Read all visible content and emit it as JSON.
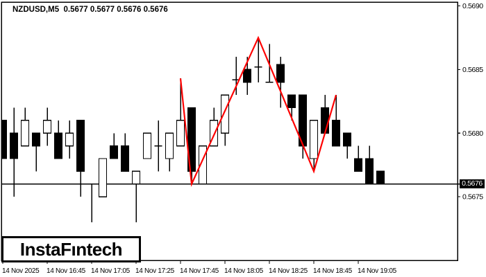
{
  "window": {
    "bg": "#ffffff",
    "fg": "#000000"
  },
  "header": {
    "title": "NZDUSD,M5  0.5677 0.5677 0.5676 0.5676"
  },
  "logo": {
    "text": "InstaFıntech"
  },
  "chart_data": {
    "type": "candlestick",
    "symbol": "NZDUSD",
    "timeframe": "M5",
    "header_ohlc": [
      "0.5677",
      "0.5677",
      "0.5676",
      "0.5676"
    ],
    "grid": false,
    "up_color": "#ffffff",
    "down_color": "#000000",
    "outline_color": "#000000",
    "y_axis": {
      "side": "right",
      "range": [
        0.567,
        0.56903
      ],
      "ticks": [
        {
          "label": "0.5690",
          "price": 0.569
        },
        {
          "label": "0.5685",
          "price": 0.5685
        },
        {
          "label": "0.5680",
          "price": 0.568
        },
        {
          "label": "0.5675",
          "price": 0.5675
        }
      ]
    },
    "x_axis": {
      "ticks": [
        {
          "label": "14 Nov 2025",
          "candle": 0
        },
        {
          "label": "14 Nov 16:45",
          "candle": 4
        },
        {
          "label": "14 Nov 17:05",
          "candle": 8
        },
        {
          "label": "14 Nov 17:25",
          "candle": 12
        },
        {
          "label": "14 Nov 17:45",
          "candle": 16
        },
        {
          "label": "14 Nov 18:05",
          "candle": 20
        },
        {
          "label": "14 Nov 18:25",
          "candle": 24
        },
        {
          "label": "14 Nov 18:45",
          "candle": 28
        },
        {
          "label": "14 Nov 19:05",
          "candle": 32
        }
      ]
    },
    "price_line": {
      "price": 0.5676,
      "label": "0.5676",
      "bg": "#000000",
      "fg": "#ffffff"
    },
    "candles": [
      [
        0.5681,
        0.5681,
        0.5678,
        0.5678
      ],
      [
        0.568,
        0.5682,
        0.5675,
        0.5678
      ],
      [
        0.5679,
        0.5682,
        0.5679,
        0.5681
      ],
      [
        0.568,
        0.568,
        0.5677,
        0.5679
      ],
      [
        0.568,
        0.5682,
        0.5679,
        0.5681
      ],
      [
        0.568,
        0.5681,
        0.5678,
        0.5678
      ],
      [
        0.5679,
        0.5681,
        0.5678,
        0.568
      ],
      [
        0.5681,
        0.5681,
        0.5675,
        0.5677
      ],
      [
        0.5676,
        0.5676,
        0.5673,
        0.5676
      ],
      [
        0.5675,
        0.5678,
        0.5675,
        0.5678
      ],
      [
        0.5679,
        0.568,
        0.5678,
        0.5678
      ],
      [
        0.5679,
        0.568,
        0.5677,
        0.5677
      ],
      [
        0.5676,
        0.5677,
        0.5673,
        0.5677
      ],
      [
        0.5678,
        0.568,
        0.5678,
        0.568
      ],
      [
        0.5679,
        0.5681,
        0.5677,
        0.5679
      ],
      [
        0.5678,
        0.568,
        0.5677,
        0.568
      ],
      [
        0.5679,
        0.56843,
        0.5679,
        0.5681
      ],
      [
        0.5682,
        0.5682,
        0.5676,
        0.5677
      ],
      [
        0.5676,
        0.5679,
        0.5676,
        0.5679
      ],
      [
        0.5679,
        0.5682,
        0.5679,
        0.5681
      ],
      [
        0.568,
        0.5683,
        0.5679,
        0.5683
      ],
      [
        0.56842,
        0.5686,
        0.5683,
        0.56842
      ],
      [
        0.5685,
        0.5686,
        0.5683,
        0.5684
      ],
      [
        0.56852,
        0.56875,
        0.5684,
        0.56852
      ],
      [
        0.5684,
        0.5687,
        0.5684,
        0.5684
      ],
      [
        0.56854,
        0.5686,
        0.5682,
        0.5684
      ],
      [
        0.5683,
        0.5683,
        0.5681,
        0.5682
      ],
      [
        0.5683,
        0.5683,
        0.5678,
        0.5679
      ],
      [
        0.5678,
        0.5681,
        0.5677,
        0.5681
      ],
      [
        0.5682,
        0.5683,
        0.568,
        0.568
      ],
      [
        0.5681,
        0.5683,
        0.5679,
        0.5679
      ],
      [
        0.568,
        0.568,
        0.5678,
        0.5679
      ],
      [
        0.5678,
        0.5679,
        0.5677,
        0.5677
      ],
      [
        0.5678,
        0.5679,
        0.5676,
        0.5676
      ],
      [
        0.5677,
        0.5677,
        0.5676,
        0.5676
      ]
    ],
    "overlays": [
      {
        "name": "zigzag",
        "color": "#ff0000",
        "points": [
          {
            "candle": 16,
            "price": 0.56843
          },
          {
            "candle": 17,
            "price": 0.5676
          },
          {
            "candle": 23,
            "price": 0.56875
          },
          {
            "candle": 28,
            "price": 0.5677
          },
          {
            "candle": 30,
            "price": 0.5683
          }
        ]
      }
    ]
  }
}
